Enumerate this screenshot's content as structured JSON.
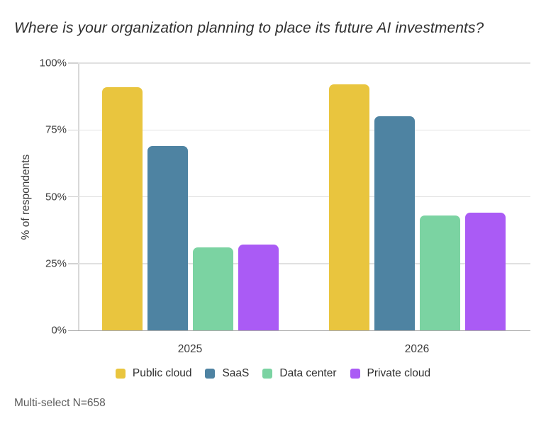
{
  "chart_data": {
    "type": "bar",
    "title": "Where is your organization planning to place its future AI investments?",
    "ylabel": "% of respondents",
    "xlabel": "",
    "categories": [
      "2025",
      "2026"
    ],
    "series": [
      {
        "name": "Public cloud",
        "color": "#E9C53E",
        "values": [
          91,
          92
        ]
      },
      {
        "name": "SaaS",
        "color": "#4E83A2",
        "values": [
          69,
          80
        ]
      },
      {
        "name": "Data center",
        "color": "#7BD3A2",
        "values": [
          31,
          43
        ]
      },
      {
        "name": "Private cloud",
        "color": "#AA5BF5",
        "values": [
          32,
          44
        ]
      }
    ],
    "ylim": [
      0,
      100
    ],
    "yticks": [
      0,
      25,
      50,
      75,
      100
    ],
    "ytick_labels": [
      "0%",
      "25%",
      "50%",
      "75%",
      "100%"
    ],
    "grid": true,
    "legend_position": "bottom",
    "footnote": "Multi-select N=658"
  }
}
